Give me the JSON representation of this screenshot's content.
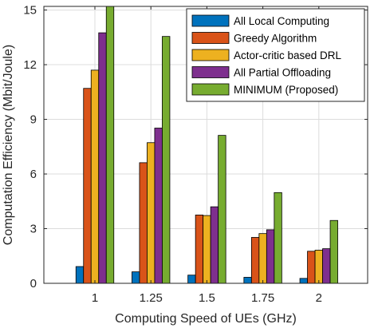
{
  "chart_data": {
    "type": "bar",
    "title": "",
    "xlabel": "Computing Speed of UEs (GHz)",
    "ylabel": "Computation Efficiency (Mbit/Joule)",
    "categories": [
      "1",
      "1.25",
      "1.5",
      "1.75",
      "2"
    ],
    "yticks": [
      "0",
      "3",
      "6",
      "9",
      "12",
      "15"
    ],
    "ylim": [
      0,
      15.2
    ],
    "grid": true,
    "legend_position": "top-right",
    "series": [
      {
        "name": "All Local Computing",
        "color": "#0072BD",
        "values": [
          0.92,
          0.63,
          0.45,
          0.33,
          0.27
        ]
      },
      {
        "name": "Greedy Algorithm",
        "color": "#D95319",
        "values": [
          10.7,
          6.62,
          3.75,
          2.52,
          1.76
        ]
      },
      {
        "name": "Actor-critic based DRL",
        "color": "#EDB120",
        "values": [
          11.7,
          7.72,
          3.72,
          2.73,
          1.82
        ]
      },
      {
        "name": "All Partial Offloading",
        "color": "#7E2F8E",
        "values": [
          13.75,
          8.52,
          4.2,
          2.94,
          1.9
        ]
      },
      {
        "name": "MINIMUM (Proposed)",
        "color": "#77AC30",
        "values": [
          15.2,
          13.55,
          8.12,
          4.98,
          3.45
        ]
      }
    ]
  }
}
